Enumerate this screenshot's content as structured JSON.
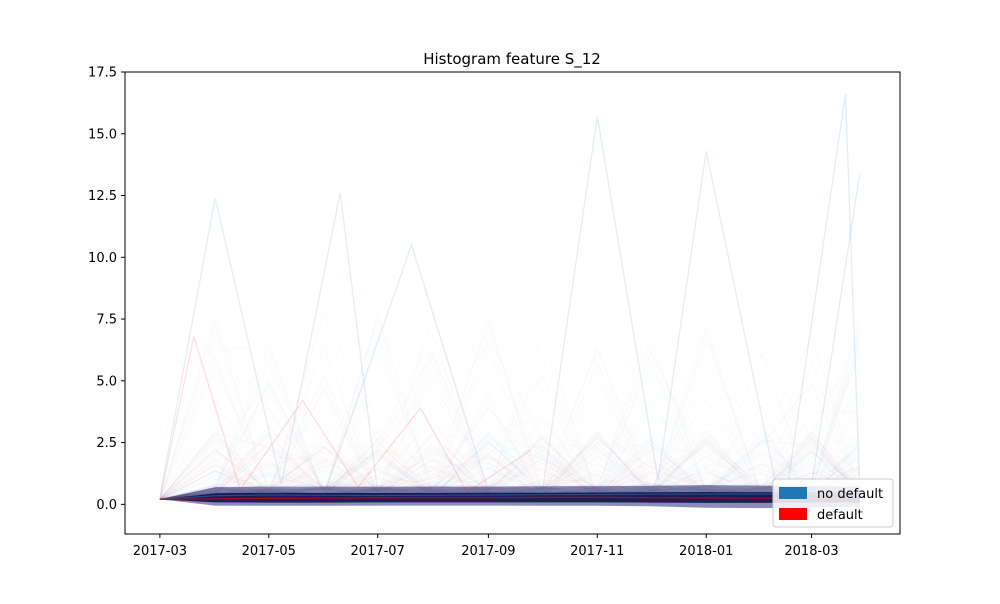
{
  "chart_data": {
    "type": "line",
    "title": "Histogram feature S_12",
    "xlabel": "",
    "ylabel": "",
    "x_range": [
      "2017-03-01",
      "2018-03-31"
    ],
    "ylim": [
      -1.2,
      17.5
    ],
    "x_ticks": [
      "2017-03",
      "2017-05",
      "2017-07",
      "2017-09",
      "2017-11",
      "2018-01",
      "2018-03"
    ],
    "y_ticks": [
      "0.0",
      "2.5",
      "5.0",
      "7.5",
      "10.0",
      "12.5",
      "15.0",
      "17.5"
    ],
    "grid": false,
    "legend_position": "lower right",
    "legend": [
      {
        "label": "no default",
        "color": "#1f77b4"
      },
      {
        "label": "default",
        "color": "#ff0000"
      }
    ],
    "series": [
      {
        "name": "no default",
        "color": "#1f77b4",
        "opacity": 0.05,
        "x": [
          "2017-03-01",
          "2017-04-01",
          "2017-05-01",
          "2017-06-01",
          "2017-07-01",
          "2017-08-01",
          "2017-09-01",
          "2017-10-01",
          "2017-11-01",
          "2017-12-01",
          "2018-01-01",
          "2018-02-01",
          "2018-03-01",
          "2018-03-28"
        ],
        "y": [
          0.2,
          0.35,
          0.38,
          0.37,
          0.36,
          0.37,
          0.38,
          0.39,
          0.4,
          0.41,
          0.42,
          0.42,
          0.41,
          0.4
        ]
      },
      {
        "name": "default",
        "color": "#ff0000",
        "opacity": 0.05,
        "x": [
          "2017-03-01",
          "2017-04-01",
          "2017-05-01",
          "2017-06-01",
          "2017-07-01",
          "2017-08-01",
          "2017-09-01",
          "2017-10-01",
          "2017-11-01",
          "2017-12-01",
          "2018-01-01",
          "2018-02-01",
          "2018-03-01",
          "2018-03-28"
        ],
        "y": [
          0.2,
          0.22,
          0.24,
          0.25,
          0.26,
          0.27,
          0.27,
          0.28,
          0.28,
          0.27,
          0.26,
          0.25,
          0.24,
          0.23
        ]
      },
      {
        "name": "no default",
        "color": "#1f77b4",
        "opacity": 0.05,
        "x": [
          "2017-03-01",
          "2017-04-01",
          "2017-05-08",
          "2017-06-10",
          "2017-07-01"
        ],
        "y": [
          0.3,
          12.4,
          0.8,
          12.6,
          0.5
        ]
      },
      {
        "name": "no default",
        "color": "#1f77b4",
        "opacity": 0.05,
        "x": [
          "2017-10-01",
          "2017-11-01",
          "2017-12-05",
          "2018-01-01",
          "2018-02-10"
        ],
        "y": [
          0.4,
          15.7,
          1.0,
          14.3,
          0.5
        ]
      },
      {
        "name": "no default",
        "color": "#1f77b4",
        "opacity": 0.05,
        "x": [
          "2018-02-15",
          "2018-03-20",
          "2018-03-28"
        ],
        "y": [
          0.5,
          16.6,
          0.6
        ]
      },
      {
        "name": "no default",
        "color": "#1f77b4",
        "opacity": 0.05,
        "x": [
          "2017-06-01",
          "2017-07-20",
          "2017-09-01"
        ],
        "y": [
          0.4,
          10.5,
          0.5
        ]
      },
      {
        "name": "default",
        "color": "#ff0000",
        "opacity": 0.05,
        "x": [
          "2017-03-01",
          "2017-03-20",
          "2017-04-15",
          "2017-05-20",
          "2017-06-20",
          "2017-07-25",
          "2017-08-20",
          "2017-09-25"
        ],
        "y": [
          0.2,
          6.8,
          0.6,
          4.2,
          0.7,
          3.9,
          0.5,
          2.2
        ]
      },
      {
        "name": "no default",
        "color": "#1f77b4",
        "opacity": 0.05,
        "x": [
          "2018-03-01",
          "2018-03-28"
        ],
        "y": [
          0.8,
          13.4
        ]
      }
    ]
  }
}
